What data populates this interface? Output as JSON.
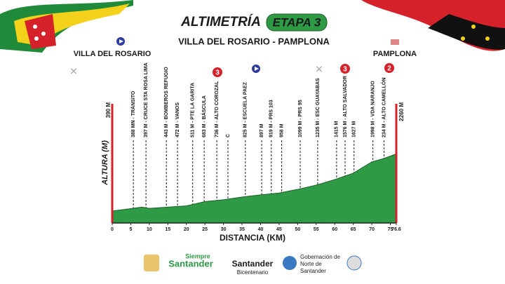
{
  "chart_data": {
    "type": "area",
    "title": "ALTIMETRÍA",
    "badge": "ETAPA 3",
    "subtitle": "VILLA DEL ROSARIO - PAMPLONA",
    "start_label": "VILLA DEL ROSARIO",
    "end_label": "PAMPLONA",
    "x_label": "DISTANCIA (KM)",
    "y_label": "ALTURA (M)",
    "x": [
      0,
      5,
      8,
      10,
      15,
      20,
      25,
      30,
      35,
      40,
      45,
      50,
      55,
      60,
      65,
      70,
      73,
      76.6
    ],
    "values": [
      390,
      470,
      520,
      480,
      520,
      560,
      700,
      760,
      850,
      920,
      980,
      1100,
      1240,
      1420,
      1630,
      2000,
      2100,
      2260
    ],
    "color": "#2f9a45",
    "xlim": [
      0,
      76.6
    ],
    "xticks": [
      0,
      5,
      10,
      15,
      20,
      25,
      30,
      35,
      40,
      45,
      50,
      55,
      60,
      65,
      70,
      75,
      76.6
    ],
    "ylim": [
      0,
      3900
    ],
    "ends": [
      {
        "value": 390,
        "label": "390 M"
      },
      {
        "value": 2260,
        "label": "2260 M"
      }
    ],
    "waypoints": [
      {
        "x": 5.7,
        "label": "388 MN - TRÁNSITO"
      },
      {
        "x": 9.1,
        "label": "397 M - CRUCE STA ROSA LIMA"
      },
      {
        "x": 14.6,
        "label": "443 M - BOMBEROS REFUGIO"
      },
      {
        "x": 17.6,
        "label": "472 M - VANOS"
      },
      {
        "x": 21.7,
        "label": "511 M - PTE LA GARITA"
      },
      {
        "x": 24.8,
        "label": "683 M - BÁSCULA"
      },
      {
        "x": 28.2,
        "label": "736 M - ALTO COROZAL"
      },
      {
        "x": 31.2,
        "label": "C"
      },
      {
        "x": 35.9,
        "label": "825 M - ESCUELA PAEZ"
      },
      {
        "x": 40.3,
        "label": "897 M"
      },
      {
        "x": 42.9,
        "label": "919 M - PRS 103"
      },
      {
        "x": 45.7,
        "label": "958 M"
      },
      {
        "x": 50.7,
        "label": "1099 M - PRS 95"
      },
      {
        "x": 55.4,
        "label": "1235 M - ESC GUAYABAS"
      },
      {
        "x": 60.5,
        "label": "1415 M"
      },
      {
        "x": 62.8,
        "label": "1576 M - ALTO SALVADOR"
      },
      {
        "x": 65.2,
        "label": "1627 M"
      },
      {
        "x": 70.3,
        "label": "1998 M - VDA NARANJO"
      },
      {
        "x": 73.3,
        "label": "234 M - ALTO CAMELLÓN"
      }
    ],
    "climb_markers": [
      "3",
      "3",
      "2"
    ],
    "logos": [
      "Siempre",
      "Santander",
      "Santander",
      "Bicentenario",
      "Gobernación de Norte de Santander"
    ]
  }
}
